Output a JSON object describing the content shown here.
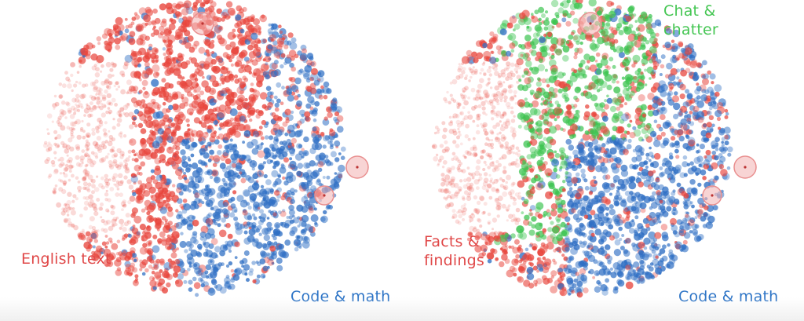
{
  "chart_data": [
    {
      "type": "scatter",
      "title": "",
      "colors": {
        "english": "#e8453c",
        "code": "#2f6fc4"
      },
      "series": [
        {
          "name": "English text",
          "color": "#e8453c"
        },
        {
          "name": "Code & math",
          "color": "#2f6fc4"
        }
      ],
      "annotations": [
        "English text",
        "Code & math"
      ],
      "grid": false
    },
    {
      "type": "scatter",
      "title": "",
      "colors": {
        "facts": "#e8453c",
        "code": "#2f6fc4",
        "chat": "#3dc451"
      },
      "series": [
        {
          "name": "Facts & findings",
          "color": "#e8453c"
        },
        {
          "name": "Code & math",
          "color": "#2f6fc4"
        },
        {
          "name": "Chat & chatter",
          "color": "#3dc451"
        }
      ],
      "annotations": [
        "Facts &\nfindings",
        "Code & math",
        "Chat &\nchatter"
      ],
      "grid": false
    }
  ]
}
